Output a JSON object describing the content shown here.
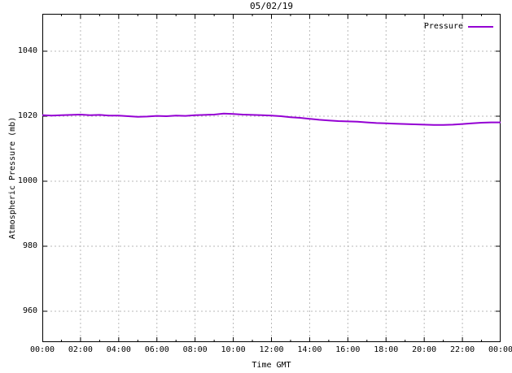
{
  "chart_data": {
    "type": "line",
    "title": "05/02/19",
    "xlabel": "Time GMT",
    "ylabel": "Atmospheric Pressure (mb)",
    "xlim": [
      0,
      24
    ],
    "ylim": [
      950.5,
      1051.5
    ],
    "grid": true,
    "legend_position": "top-right-inside",
    "colors": {
      "line": "#9400d3",
      "grid": "#b9b9b9",
      "axis": "#000000",
      "background": "#ffffff"
    },
    "xticks": [
      {
        "value": 0,
        "label": "00:00"
      },
      {
        "value": 2,
        "label": "02:00"
      },
      {
        "value": 4,
        "label": "04:00"
      },
      {
        "value": 6,
        "label": "06:00"
      },
      {
        "value": 8,
        "label": "08:00"
      },
      {
        "value": 10,
        "label": "10:00"
      },
      {
        "value": 12,
        "label": "12:00"
      },
      {
        "value": 14,
        "label": "14:00"
      },
      {
        "value": 16,
        "label": "16:00"
      },
      {
        "value": 18,
        "label": "18:00"
      },
      {
        "value": 20,
        "label": "20:00"
      },
      {
        "value": 22,
        "label": "22:00"
      },
      {
        "value": 24,
        "label": "00:00"
      }
    ],
    "xminor": [
      1,
      3,
      5,
      7,
      9,
      11,
      13,
      15,
      17,
      19,
      21,
      23
    ],
    "yticks": [
      {
        "value": 960,
        "label": "960"
      },
      {
        "value": 980,
        "label": "980"
      },
      {
        "value": 1000,
        "label": "1000"
      },
      {
        "value": 1020,
        "label": "1020"
      },
      {
        "value": 1040,
        "label": "1040"
      }
    ],
    "series": [
      {
        "name": "Pressure",
        "color": "#9400d3",
        "points": [
          [
            0.0,
            1020.3
          ],
          [
            0.5,
            1020.2
          ],
          [
            1.0,
            1020.3
          ],
          [
            1.5,
            1020.4
          ],
          [
            2.0,
            1020.5
          ],
          [
            2.5,
            1020.3
          ],
          [
            3.0,
            1020.4
          ],
          [
            3.5,
            1020.2
          ],
          [
            4.0,
            1020.2
          ],
          [
            4.5,
            1020.0
          ],
          [
            5.0,
            1019.8
          ],
          [
            5.5,
            1019.9
          ],
          [
            6.0,
            1020.1
          ],
          [
            6.5,
            1020.0
          ],
          [
            7.0,
            1020.2
          ],
          [
            7.5,
            1020.1
          ],
          [
            8.0,
            1020.3
          ],
          [
            8.5,
            1020.4
          ],
          [
            9.0,
            1020.5
          ],
          [
            9.5,
            1020.8
          ],
          [
            10.0,
            1020.7
          ],
          [
            10.5,
            1020.5
          ],
          [
            11.0,
            1020.4
          ],
          [
            11.5,
            1020.3
          ],
          [
            12.0,
            1020.2
          ],
          [
            12.5,
            1020.0
          ],
          [
            13.0,
            1019.7
          ],
          [
            13.5,
            1019.5
          ],
          [
            14.0,
            1019.2
          ],
          [
            14.5,
            1018.9
          ],
          [
            15.0,
            1018.7
          ],
          [
            15.5,
            1018.5
          ],
          [
            16.0,
            1018.4
          ],
          [
            16.5,
            1018.3
          ],
          [
            17.0,
            1018.1
          ],
          [
            17.5,
            1017.9
          ],
          [
            18.0,
            1017.8
          ],
          [
            18.5,
            1017.7
          ],
          [
            19.0,
            1017.6
          ],
          [
            19.5,
            1017.5
          ],
          [
            20.0,
            1017.4
          ],
          [
            20.5,
            1017.3
          ],
          [
            21.0,
            1017.3
          ],
          [
            21.5,
            1017.4
          ],
          [
            22.0,
            1017.6
          ],
          [
            22.5,
            1017.8
          ],
          [
            23.0,
            1018.0
          ],
          [
            23.5,
            1018.1
          ],
          [
            24.0,
            1018.1
          ]
        ]
      }
    ]
  }
}
